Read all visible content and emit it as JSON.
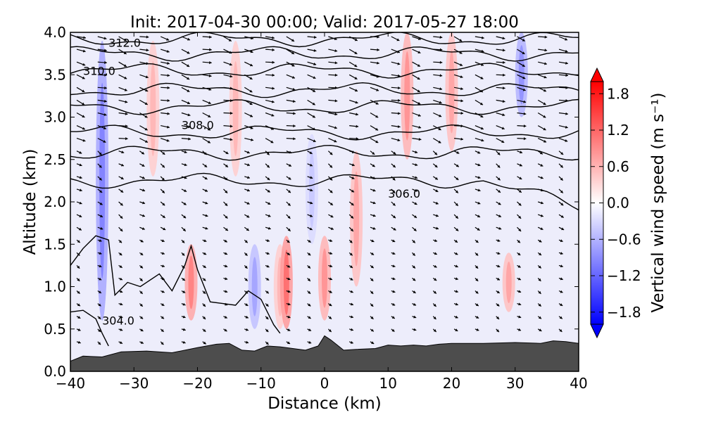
{
  "chart_data": {
    "type": "contour",
    "title": "Init: 2017-04-30 00:00; Valid: 2017-05-27 18:00",
    "xlabel": "Distance (km)",
    "ylabel": "Altitude (km)",
    "xlim": [
      -40,
      40
    ],
    "ylim": [
      0.0,
      4.0
    ],
    "x_ticks": [
      -40,
      -30,
      -20,
      -10,
      0,
      10,
      20,
      30,
      40
    ],
    "x_tick_labels": [
      "−40",
      "−30",
      "−20",
      "−10",
      "0",
      "10",
      "20",
      "30",
      "40"
    ],
    "y_ticks": [
      0.0,
      0.5,
      1.0,
      1.5,
      2.0,
      2.5,
      3.0,
      3.5,
      4.0
    ],
    "y_tick_labels": [
      "0.0",
      "0.5",
      "1.0",
      "1.5",
      "2.0",
      "2.5",
      "3.0",
      "3.5",
      "4.0"
    ],
    "colorbar": {
      "label": "Vertical wind speed (m s⁻¹)",
      "range": [
        -2.0,
        2.0
      ],
      "ticks": [
        -1.8,
        -1.2,
        -0.6,
        0.0,
        0.6,
        1.2,
        1.8
      ],
      "tick_labels": [
        "−1.8",
        "−1.2",
        "−0.6",
        "0.0",
        "0.6",
        "1.2",
        "1.8"
      ],
      "colormap": "bwr",
      "colors": {
        "low": "#0000ff",
        "mid": "#ffffff",
        "high": "#ff0000"
      }
    },
    "terrain": {
      "color": "#4d4d4d",
      "x": [
        -40,
        -38,
        -35,
        -32,
        -28,
        -24,
        -20,
        -17,
        -15,
        -13,
        -11,
        -9,
        -7,
        -5,
        -3,
        -1,
        0,
        1,
        2,
        3,
        5,
        8,
        10,
        12,
        14,
        16,
        18,
        20,
        25,
        30,
        34,
        36,
        38,
        40
      ],
      "height": [
        0.12,
        0.18,
        0.17,
        0.23,
        0.24,
        0.22,
        0.28,
        0.32,
        0.33,
        0.25,
        0.24,
        0.3,
        0.29,
        0.27,
        0.25,
        0.3,
        0.42,
        0.37,
        0.31,
        0.25,
        0.26,
        0.27,
        0.31,
        0.3,
        0.31,
        0.3,
        0.32,
        0.33,
        0.33,
        0.34,
        0.33,
        0.36,
        0.35,
        0.33
      ]
    },
    "contour_levels": [
      {
        "value": 304.0,
        "label": "304.0",
        "label_at": [
          -35,
          0.55
        ]
      },
      {
        "value": 306.0,
        "label": "306.0",
        "label_at": [
          10,
          2.05
        ]
      },
      {
        "value": 308.0,
        "label": "308.0",
        "label_at": [
          -22.5,
          2.86
        ]
      },
      {
        "value": 310.0,
        "label": "310.0",
        "label_at": [
          -38,
          3.5
        ]
      },
      {
        "value": 312.0,
        "label": "312.0",
        "label_at": [
          -34,
          3.83
        ]
      }
    ],
    "vertical_wind_features": [
      {
        "x": -35,
        "z": [
          0.6,
          3.9
        ],
        "w": -0.7
      },
      {
        "x": -27,
        "z": [
          2.3,
          3.9
        ],
        "w": 0.4
      },
      {
        "x": -21,
        "z": [
          0.6,
          1.5
        ],
        "w": 0.7
      },
      {
        "x": -14,
        "z": [
          2.3,
          3.9
        ],
        "w": 0.4
      },
      {
        "x": -11,
        "z": [
          0.5,
          1.5
        ],
        "w": -0.5
      },
      {
        "x": -7,
        "z": [
          0.5,
          1.5
        ],
        "w": 0.4
      },
      {
        "x": -6,
        "z": [
          0.5,
          1.6
        ],
        "w": 0.8
      },
      {
        "x": -2,
        "z": [
          1.5,
          2.8
        ],
        "w": -0.3
      },
      {
        "x": 0,
        "z": [
          0.6,
          1.6
        ],
        "w": 0.6
      },
      {
        "x": 5,
        "z": [
          1.0,
          2.6
        ],
        "w": 0.5
      },
      {
        "x": 13,
        "z": [
          2.5,
          4.0
        ],
        "w": 0.6
      },
      {
        "x": 20,
        "z": [
          2.6,
          4.0
        ],
        "w": 0.5
      },
      {
        "x": 29,
        "z": [
          0.7,
          1.4
        ],
        "w": 0.5
      },
      {
        "x": 31,
        "z": [
          3.0,
          4.0
        ],
        "w": -0.6
      }
    ]
  }
}
